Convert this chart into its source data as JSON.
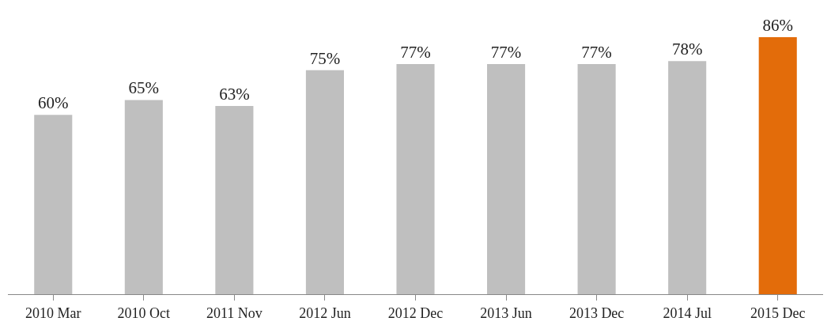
{
  "chart_data": {
    "type": "bar",
    "categories": [
      "2010 Mar",
      "2010 Oct",
      "2011 Nov",
      "2012 Jun",
      "2012 Dec",
      "2013 Jun",
      "2013 Dec",
      "2014 Jul",
      "2015 Dec"
    ],
    "values": [
      60,
      65,
      63,
      75,
      77,
      77,
      77,
      78,
      86
    ],
    "colors": [
      "#bfbfbf",
      "#bfbfbf",
      "#bfbfbf",
      "#bfbfbf",
      "#bfbfbf",
      "#bfbfbf",
      "#bfbfbf",
      "#bfbfbf",
      "#e36c0a"
    ],
    "value_labels": [
      "60%",
      "65%",
      "63%",
      "75%",
      "77%",
      "77%",
      "77%",
      "78%",
      "86%"
    ]
  }
}
